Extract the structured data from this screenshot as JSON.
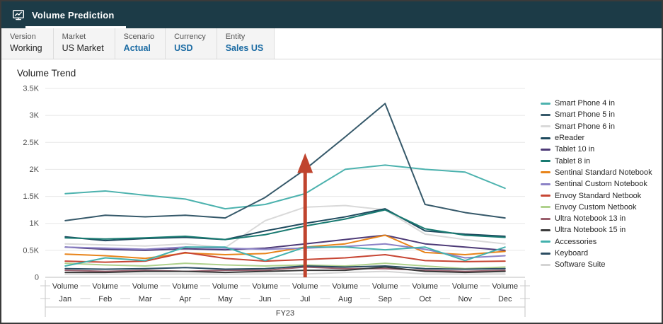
{
  "header": {
    "title": "Volume Prediction"
  },
  "pov": {
    "fields": [
      {
        "label": "Version",
        "value": "Working"
      },
      {
        "label": "Market",
        "value": "US Market"
      },
      {
        "label": "Scenario",
        "value": "Actual"
      },
      {
        "label": "Currency",
        "value": "USD"
      },
      {
        "label": "Entity",
        "value": "Sales US"
      }
    ]
  },
  "chart_data": {
    "type": "line",
    "title": "Volume Trend",
    "x_group_label": "FY23",
    "x_sub_label": "Volume",
    "categories": [
      "Jan",
      "Feb",
      "Mar",
      "Apr",
      "May",
      "Jun",
      "Jul",
      "Aug",
      "Sep",
      "Oct",
      "Nov",
      "Dec"
    ],
    "y_ticks": [
      "0",
      "0.5K",
      "1K",
      "1.5K",
      "2K",
      "2.5K",
      "3K",
      "3.5K"
    ],
    "ylim": [
      0,
      3500
    ],
    "grid": true,
    "legend_position": "right",
    "series": [
      {
        "name": "Smart Phone 4 in",
        "color": "#4cb2ae",
        "values": [
          1550,
          1600,
          1520,
          1450,
          1270,
          1350,
          1550,
          2000,
          2080,
          2000,
          1950,
          1650
        ]
      },
      {
        "name": "Smart Phone 5 in",
        "color": "#36596a",
        "values": [
          1050,
          1150,
          1120,
          1150,
          1100,
          1480,
          2000,
          2600,
          3220,
          1350,
          1200,
          1100
        ]
      },
      {
        "name": "Smart Phone 6 in",
        "color": "#d9d9d9",
        "values": [
          620,
          600,
          580,
          620,
          550,
          1050,
          1300,
          1330,
          1250,
          800,
          700,
          620
        ]
      },
      {
        "name": "eReader",
        "color": "#1e4a5e",
        "values": [
          750,
          680,
          720,
          740,
          700,
          860,
          1000,
          1120,
          1270,
          860,
          800,
          760
        ]
      },
      {
        "name": "Tablet 10 in",
        "color": "#4d3a77",
        "values": [
          560,
          520,
          500,
          530,
          510,
          540,
          620,
          700,
          780,
          620,
          560,
          500
        ]
      },
      {
        "name": "Tablet 8 in",
        "color": "#187a71",
        "values": [
          730,
          710,
          730,
          760,
          700,
          790,
          950,
          1080,
          1250,
          900,
          780,
          740
        ]
      },
      {
        "name": "Sentinal Standard Notebook",
        "color": "#e8841a",
        "values": [
          430,
          400,
          350,
          450,
          420,
          440,
          560,
          620,
          780,
          460,
          420,
          480
        ]
      },
      {
        "name": "Sentinal Custom Notebook",
        "color": "#8c82c6",
        "values": [
          560,
          540,
          520,
          560,
          540,
          520,
          540,
          570,
          620,
          520,
          360,
          400
        ]
      },
      {
        "name": "Envoy Standard Netbook",
        "color": "#c74634",
        "values": [
          300,
          280,
          300,
          460,
          350,
          300,
          330,
          360,
          420,
          310,
          290,
          300
        ]
      },
      {
        "name": "Envoy Custom Netbook",
        "color": "#afd18c",
        "values": [
          260,
          230,
          210,
          260,
          230,
          210,
          230,
          210,
          260,
          210,
          160,
          190
        ]
      },
      {
        "name": "Ultra Notebook 13 in",
        "color": "#9a5e6c",
        "values": [
          130,
          110,
          130,
          110,
          130,
          130,
          190,
          160,
          160,
          130,
          110,
          130
        ]
      },
      {
        "name": "Ultra Notebook 15 in",
        "color": "#3b3b3b",
        "values": [
          90,
          90,
          110,
          110,
          90,
          110,
          130,
          130,
          190,
          110,
          90,
          110
        ]
      },
      {
        "name": "Accessories",
        "color": "#43b1ad",
        "values": [
          210,
          360,
          310,
          560,
          560,
          310,
          560,
          560,
          510,
          560,
          310,
          560
        ]
      },
      {
        "name": "Keyboard",
        "color": "#2b4d62",
        "values": [
          160,
          150,
          160,
          180,
          150,
          160,
          210,
          190,
          210,
          160,
          150,
          160
        ]
      },
      {
        "name": "Software Suite",
        "color": "#d4d4d4",
        "values": [
          60,
          60,
          60,
          60,
          60,
          60,
          60,
          90,
          110,
          60,
          60,
          60
        ]
      }
    ],
    "annotation": {
      "type": "arrow-up",
      "category": "Jul",
      "from_value": 0,
      "to_value": 2300,
      "color": "#c0442e"
    }
  }
}
